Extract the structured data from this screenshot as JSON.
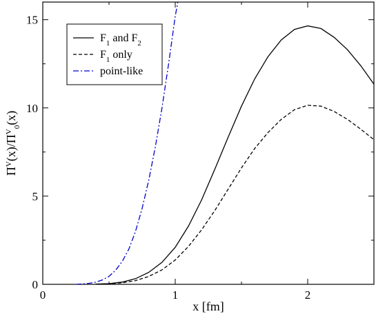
{
  "chart_data": {
    "type": "line",
    "xlabel": "x [fm]",
    "ylabel": {
      "parts": [
        {
          "t": "Π",
          "s": "base"
        },
        {
          "t": "V",
          "s": "sup"
        },
        {
          "t": "(x)/Π",
          "s": "base"
        },
        {
          "t": "V",
          "s": "sup"
        },
        {
          "t": "0",
          "s": "sub"
        },
        {
          "t": "(x)",
          "s": "base"
        }
      ]
    },
    "xlim": [
      0,
      2.5
    ],
    "ylim": [
      0,
      16
    ],
    "xticks": [
      0,
      1,
      2
    ],
    "xtick_labels": [
      "0",
      "1",
      "2"
    ],
    "yticks": [
      0,
      5,
      10,
      15
    ],
    "ytick_labels": [
      "0",
      "5",
      "10",
      "15"
    ],
    "grid": false,
    "legend_position": "top-left",
    "series": [
      {
        "name": "F1 and F2",
        "legend": [
          {
            "t": "F",
            "s": "base"
          },
          {
            "t": "1",
            "s": "sub"
          },
          {
            "t": " and F",
            "s": "base"
          },
          {
            "t": "2",
            "s": "sub"
          }
        ],
        "style": "solid",
        "color": "#000000",
        "x": [
          0.4,
          0.5,
          0.6,
          0.7,
          0.8,
          0.9,
          1.0,
          1.1,
          1.2,
          1.3,
          1.4,
          1.5,
          1.6,
          1.7,
          1.8,
          1.9,
          2.0,
          2.1,
          2.2,
          2.3,
          2.4,
          2.5
        ],
        "y": [
          0.01,
          0.04,
          0.13,
          0.32,
          0.68,
          1.25,
          2.1,
          3.3,
          4.8,
          6.55,
          8.35,
          10.1,
          11.65,
          12.9,
          13.85,
          14.45,
          14.65,
          14.5,
          14.0,
          13.3,
          12.4,
          11.35
        ]
      },
      {
        "name": "F1 only",
        "legend": [
          {
            "t": "F",
            "s": "base"
          },
          {
            "t": "1",
            "s": "sub"
          },
          {
            "t": " only",
            "s": "base"
          }
        ],
        "style": "dashed",
        "color": "#000000",
        "x": [
          0.4,
          0.5,
          0.6,
          0.7,
          0.8,
          0.9,
          1.0,
          1.1,
          1.2,
          1.3,
          1.4,
          1.5,
          1.6,
          1.7,
          1.8,
          1.9,
          2.0,
          2.1,
          2.2,
          2.3,
          2.4,
          2.5
        ],
        "y": [
          0.01,
          0.03,
          0.09,
          0.21,
          0.45,
          0.82,
          1.38,
          2.15,
          3.1,
          4.2,
          5.4,
          6.6,
          7.7,
          8.6,
          9.35,
          9.9,
          10.15,
          10.1,
          9.8,
          9.35,
          8.8,
          8.2
        ]
      },
      {
        "name": "point-like",
        "legend": [
          {
            "t": "point-like",
            "s": "base"
          }
        ],
        "style": "dashdot",
        "color": "#0000cc",
        "x": [
          0.25,
          0.3,
          0.35,
          0.4,
          0.45,
          0.5,
          0.55,
          0.6,
          0.65,
          0.7,
          0.75,
          0.8,
          0.85,
          0.9,
          0.95,
          1.0,
          1.02
        ],
        "y": [
          0.0,
          0.02,
          0.06,
          0.12,
          0.25,
          0.45,
          0.8,
          1.3,
          2.0,
          3.0,
          4.3,
          5.9,
          7.8,
          10.0,
          12.5,
          15.2,
          16.0
        ]
      }
    ]
  }
}
